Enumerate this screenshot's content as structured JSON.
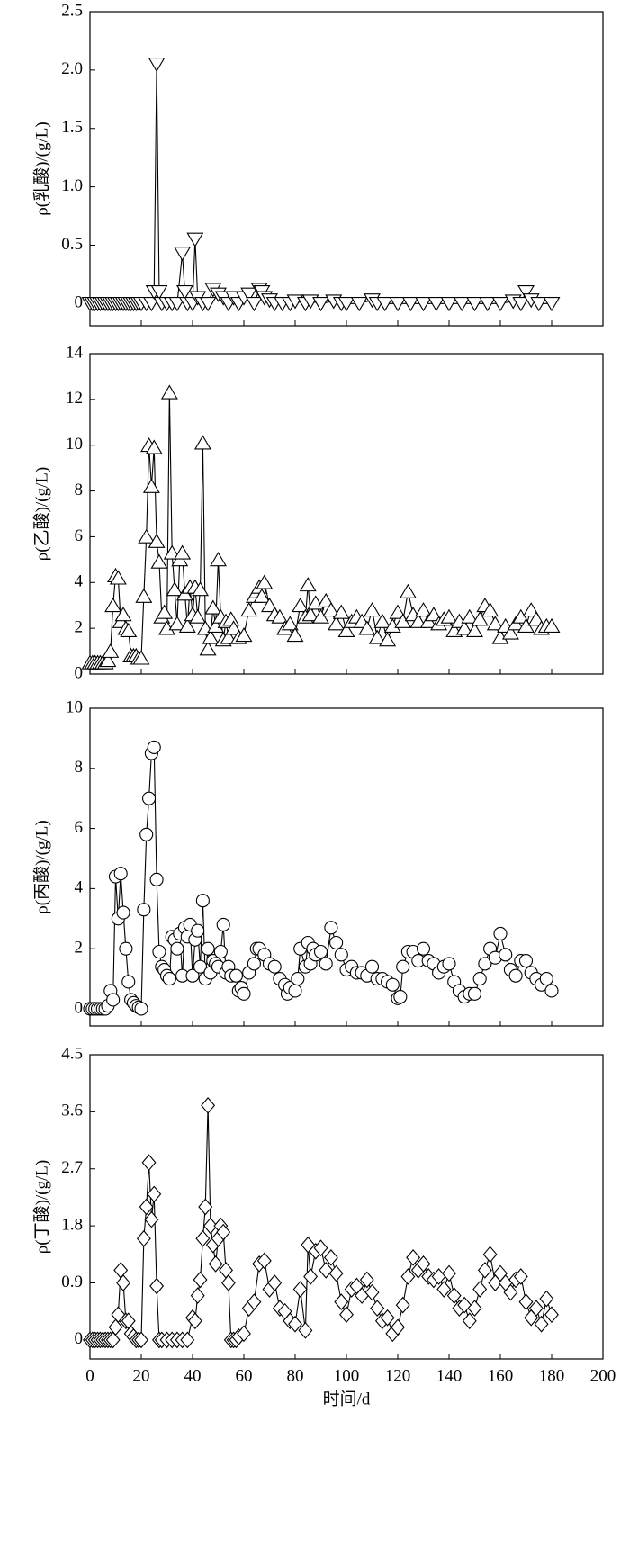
{
  "chart_data": [
    {
      "type": "line",
      "ylabel": "ρ(乳酸)/(g/L)",
      "marker": "triangle-down",
      "color": "#000000",
      "xlim": [
        0,
        200
      ],
      "xticks": [
        0,
        20,
        40,
        60,
        80,
        100,
        120,
        140,
        160,
        180,
        200
      ],
      "ylim": [
        -0.19,
        2.5
      ],
      "yticks": [
        0,
        0.5,
        {
          "value": 1,
          "label": "1.0"
        },
        1.5,
        {
          "value": 2,
          "label": "2.0"
        },
        2.5
      ],
      "x": [
        0,
        1,
        2,
        3,
        4,
        5,
        6,
        7,
        8,
        9,
        10,
        11,
        12,
        13,
        14,
        15,
        16,
        17,
        18,
        19,
        20,
        22,
        24,
        25,
        26,
        27,
        28,
        30,
        32,
        34,
        36,
        37,
        38,
        40,
        41,
        42,
        44,
        46,
        48,
        50,
        52,
        54,
        56,
        58,
        60,
        62,
        64,
        66,
        67,
        68,
        70,
        72,
        75,
        78,
        80,
        84,
        86,
        90,
        95,
        98,
        100,
        105,
        110,
        112,
        115,
        120,
        125,
        130,
        135,
        140,
        145,
        150,
        155,
        160,
        165,
        168,
        170,
        172,
        175,
        180
      ],
      "values": [
        0,
        0,
        0,
        0,
        0,
        0,
        0,
        0,
        0,
        0,
        0,
        0,
        0,
        0,
        0,
        0,
        0,
        0,
        0,
        0,
        0,
        0,
        0,
        0.1,
        2.05,
        0.1,
        0,
        0,
        0,
        0,
        0.43,
        0.1,
        0,
        0,
        0.55,
        0.05,
        0,
        0,
        0.12,
        0.08,
        0.05,
        0,
        0.05,
        0,
        0.05,
        0.08,
        0,
        0.12,
        0.1,
        0.05,
        0.03,
        0,
        0,
        0,
        0.02,
        0,
        0.02,
        0,
        0.02,
        0,
        0,
        0,
        0.03,
        0,
        0,
        0,
        0,
        0,
        0,
        0,
        0,
        0,
        0,
        0,
        0.02,
        0,
        0.1,
        0.03,
        0,
        0
      ]
    },
    {
      "type": "line",
      "ylabel": "ρ(乙酸)/(g/L)",
      "marker": "triangle-up",
      "color": "#000000",
      "xlim": [
        0,
        200
      ],
      "xticks": [
        0,
        20,
        40,
        60,
        80,
        100,
        120,
        140,
        160,
        180,
        200
      ],
      "ylim": [
        0,
        14
      ],
      "yticks": [
        0,
        2,
        4,
        6,
        8,
        10,
        12,
        14
      ],
      "x": [
        0,
        1,
        2,
        3,
        4,
        5,
        6,
        7,
        8,
        9,
        10,
        11,
        12,
        13,
        14,
        15,
        16,
        17,
        18,
        19,
        20,
        21,
        22,
        23,
        24,
        25,
        26,
        27,
        28,
        29,
        30,
        31,
        32,
        33,
        34,
        35,
        36,
        37,
        38,
        39,
        40,
        41,
        42,
        43,
        44,
        45,
        46,
        47,
        48,
        49,
        50,
        51,
        52,
        53,
        54,
        55,
        56,
        58,
        60,
        62,
        64,
        65,
        66,
        67,
        68,
        70,
        72,
        74,
        76,
        78,
        80,
        82,
        84,
        85,
        86,
        88,
        90,
        92,
        94,
        96,
        98,
        100,
        102,
        104,
        106,
        108,
        110,
        112,
        114,
        116,
        118,
        120,
        122,
        124,
        126,
        128,
        130,
        132,
        134,
        136,
        138,
        140,
        142,
        144,
        146,
        148,
        150,
        152,
        154,
        156,
        158,
        160,
        162,
        164,
        166,
        168,
        170,
        172,
        174,
        176,
        178,
        180
      ],
      "values": [
        0.5,
        0.5,
        0.5,
        0.5,
        0.5,
        0.5,
        0.5,
        0.6,
        1.0,
        3.0,
        4.3,
        4.2,
        2.3,
        2.6,
        2.0,
        1.9,
        0.8,
        0.8,
        0.8,
        0.7,
        0.7,
        3.4,
        6.0,
        10.0,
        8.2,
        9.9,
        5.8,
        4.9,
        2.5,
        2.7,
        2.0,
        12.3,
        5.3,
        3.7,
        2.2,
        5.0,
        5.3,
        3.5,
        2.1,
        3.8,
        2.6,
        3.8,
        2.5,
        3.7,
        10.1,
        2.0,
        1.1,
        1.6,
        2.9,
        2.1,
        5.0,
        2.5,
        1.5,
        2.3,
        1.6,
        2.4,
        2.0,
        1.6,
        1.7,
        2.8,
        3.4,
        3.6,
        3.8,
        3.4,
        4.0,
        3.0,
        2.6,
        2.5,
        2.0,
        2.2,
        1.7,
        3.0,
        2.5,
        3.9,
        2.6,
        3.1,
        2.5,
        3.2,
        2.8,
        2.2,
        2.7,
        1.9,
        2.3,
        2.5,
        2.3,
        2.0,
        2.8,
        1.6,
        2.3,
        1.5,
        2.1,
        2.7,
        2.3,
        3.6,
        2.6,
        2.3,
        2.8,
        2.3,
        2.6,
        2.2,
        2.4,
        2.5,
        1.9,
        2.3,
        2.0,
        2.5,
        1.9,
        2.4,
        3.0,
        2.8,
        2.2,
        1.6,
        2.1,
        1.8,
        2.2,
        2.5,
        2.1,
        2.8,
        2.4,
        2.0,
        2.1,
        2.1
      ]
    },
    {
      "type": "line",
      "ylabel": "ρ(丙酸)/(g/L)",
      "marker": "circle",
      "color": "#000000",
      "xlim": [
        0,
        200
      ],
      "xticks": [
        0,
        20,
        40,
        60,
        80,
        100,
        120,
        140,
        160,
        180,
        200
      ],
      "ylim": [
        -0.57,
        10
      ],
      "yticks": [
        0,
        2,
        4,
        6,
        8,
        10
      ],
      "x": [
        0,
        1,
        2,
        3,
        4,
        5,
        6,
        7,
        8,
        9,
        10,
        11,
        12,
        13,
        14,
        15,
        16,
        17,
        18,
        19,
        20,
        21,
        22,
        23,
        24,
        25,
        26,
        27,
        28,
        29,
        30,
        31,
        32,
        33,
        34,
        35,
        36,
        37,
        38,
        39,
        40,
        41,
        42,
        43,
        44,
        45,
        46,
        47,
        48,
        49,
        50,
        51,
        52,
        53,
        54,
        55,
        57,
        58,
        59,
        60,
        62,
        64,
        65,
        66,
        68,
        70,
        72,
        74,
        76,
        77,
        78,
        80,
        81,
        82,
        84,
        85,
        86,
        87,
        88,
        90,
        92,
        94,
        96,
        98,
        100,
        102,
        104,
        106,
        108,
        110,
        112,
        114,
        116,
        118,
        120,
        121,
        122,
        124,
        126,
        128,
        130,
        132,
        134,
        136,
        138,
        140,
        142,
        144,
        146,
        148,
        150,
        152,
        154,
        156,
        158,
        160,
        162,
        164,
        166,
        168,
        170,
        172,
        174,
        176,
        178,
        180
      ],
      "values": [
        0,
        0,
        0,
        0,
        0,
        0,
        0,
        0.1,
        0.6,
        0.3,
        4.4,
        3.0,
        4.5,
        3.2,
        2.0,
        0.9,
        0.3,
        0.2,
        0.1,
        0.05,
        0,
        3.3,
        5.8,
        7.0,
        8.5,
        8.7,
        4.3,
        1.9,
        1.4,
        1.3,
        1.1,
        1.0,
        2.4,
        2.3,
        2.0,
        2.5,
        1.1,
        2.7,
        2.4,
        2.8,
        1.1,
        2.3,
        2.6,
        1.4,
        3.6,
        1.0,
        2.0,
        1.2,
        1.6,
        1.5,
        1.4,
        1.9,
        2.8,
        1.2,
        1.4,
        1.1,
        1.1,
        0.6,
        0.7,
        0.5,
        1.2,
        1.5,
        2.0,
        2.0,
        1.8,
        1.5,
        1.4,
        1.0,
        0.8,
        0.5,
        0.7,
        0.6,
        1.0,
        2.0,
        1.4,
        2.2,
        1.5,
        2.0,
        1.8,
        1.9,
        1.5,
        2.7,
        2.2,
        1.8,
        1.3,
        1.4,
        1.2,
        1.2,
        1.1,
        1.4,
        1.0,
        1.0,
        0.9,
        0.8,
        0.35,
        0.4,
        1.4,
        1.9,
        1.9,
        1.6,
        2.0,
        1.6,
        1.5,
        1.2,
        1.4,
        1.5,
        0.9,
        0.6,
        0.4,
        0.5,
        0.5,
        1.0,
        1.5,
        2.0,
        1.7,
        2.5,
        1.8,
        1.3,
        1.1,
        1.6,
        1.6,
        1.2,
        1.0,
        0.8,
        1.0,
        0.6
      ]
    },
    {
      "type": "line",
      "ylabel": "ρ(丁酸)/(g/L)",
      "xlabel": "时间/d",
      "marker": "diamond",
      "color": "#000000",
      "xlim": [
        0,
        200
      ],
      "xticks": [
        0,
        20,
        40,
        60,
        80,
        100,
        120,
        140,
        160,
        180,
        200
      ],
      "ylim": [
        -0.3,
        4.5
      ],
      "yticks": [
        0,
        0.9,
        1.8,
        2.7,
        3.6,
        4.5
      ],
      "x": [
        0,
        1,
        2,
        3,
        4,
        5,
        6,
        7,
        8,
        9,
        10,
        11,
        12,
        13,
        14,
        15,
        16,
        17,
        18,
        19,
        20,
        21,
        22,
        23,
        24,
        25,
        26,
        27,
        28,
        30,
        32,
        34,
        36,
        38,
        40,
        41,
        42,
        43,
        44,
        45,
        46,
        47,
        48,
        49,
        50,
        51,
        52,
        53,
        54,
        55,
        56,
        57,
        58,
        60,
        62,
        64,
        66,
        68,
        70,
        72,
        74,
        76,
        78,
        80,
        82,
        84,
        85,
        86,
        88,
        90,
        92,
        94,
        96,
        98,
        100,
        102,
        104,
        106,
        108,
        110,
        112,
        114,
        116,
        118,
        120,
        122,
        124,
        126,
        128,
        130,
        132,
        134,
        136,
        138,
        140,
        142,
        144,
        146,
        148,
        150,
        152,
        154,
        156,
        158,
        160,
        162,
        164,
        166,
        168,
        170,
        172,
        174,
        176,
        178,
        180
      ],
      "values": [
        0,
        0,
        0,
        0,
        0,
        0,
        0,
        0,
        0,
        0,
        0.2,
        0.4,
        1.1,
        0.9,
        0.3,
        0.3,
        0.1,
        0.05,
        0,
        0,
        0,
        1.6,
        2.1,
        2.8,
        1.9,
        2.3,
        0.85,
        0,
        0,
        0,
        0,
        0,
        0,
        0,
        0.35,
        0.3,
        0.7,
        0.95,
        1.6,
        2.1,
        3.7,
        1.8,
        1.5,
        1.2,
        1.6,
        1.8,
        1.7,
        1.1,
        0.9,
        0,
        0,
        0,
        0.05,
        0.1,
        0.5,
        0.6,
        1.2,
        1.25,
        0.8,
        0.9,
        0.5,
        0.45,
        0.3,
        0.25,
        0.8,
        0.15,
        1.5,
        1.0,
        1.4,
        1.45,
        1.1,
        1.3,
        1.05,
        0.6,
        0.4,
        0.8,
        0.85,
        0.7,
        0.95,
        0.75,
        0.5,
        0.3,
        0.35,
        0.1,
        0.2,
        0.55,
        1.0,
        1.3,
        1.1,
        1.2,
        1.0,
        0.95,
        1.0,
        0.8,
        1.05,
        0.7,
        0.5,
        0.55,
        0.3,
        0.5,
        0.8,
        1.1,
        1.35,
        0.9,
        1.05,
        0.9,
        0.75,
        0.95,
        1.0,
        0.6,
        0.35,
        0.5,
        0.25,
        0.65,
        0.4
      ]
    }
  ]
}
